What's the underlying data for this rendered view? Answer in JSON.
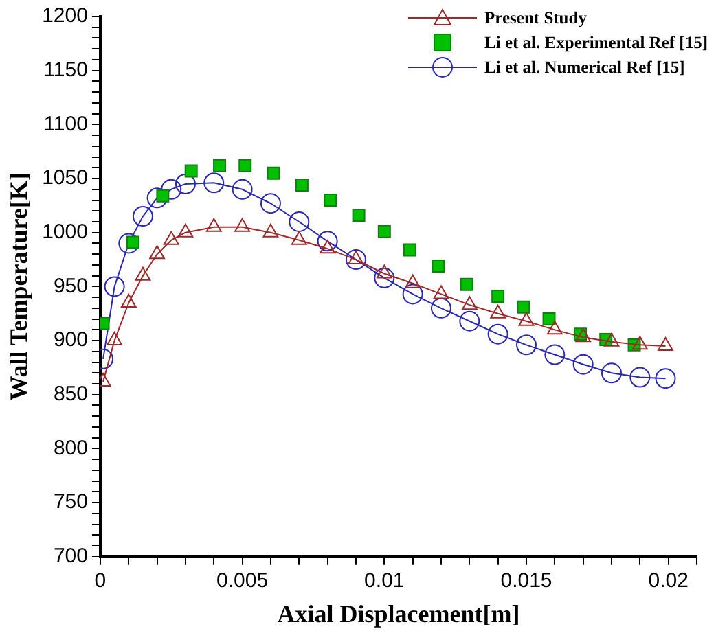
{
  "chart_data": {
    "type": "line",
    "xlabel": "Axial Displacement[m]",
    "ylabel": "Wall Temperature[K]",
    "xlim": [
      0,
      0.021
    ],
    "ylim": [
      700,
      1200
    ],
    "xticks": [
      0,
      {
        "value": 0.001,
        "label": null
      },
      {
        "value": 0.002,
        "label": null
      },
      {
        "value": 0.003,
        "label": null
      },
      {
        "value": 0.004,
        "label": null
      },
      0.005,
      {
        "value": 0.006,
        "label": null
      },
      {
        "value": 0.007,
        "label": null
      },
      {
        "value": 0.008,
        "label": null
      },
      {
        "value": 0.009,
        "label": null
      },
      0.01,
      {
        "value": 0.011,
        "label": null
      },
      {
        "value": 0.012,
        "label": null
      },
      {
        "value": 0.013,
        "label": null
      },
      {
        "value": 0.014,
        "label": null
      },
      0.015,
      {
        "value": 0.016,
        "label": null
      },
      {
        "value": 0.017,
        "label": null
      },
      {
        "value": 0.018,
        "label": null
      },
      {
        "value": 0.019,
        "label": null
      },
      0.02,
      {
        "value": 0.021,
        "label": null
      }
    ],
    "yticks": [
      700,
      {
        "value": 710,
        "label": null
      },
      {
        "value": 720,
        "label": null
      },
      {
        "value": 730,
        "label": null
      },
      {
        "value": 740,
        "label": null
      },
      750,
      {
        "value": 760,
        "label": null
      },
      {
        "value": 770,
        "label": null
      },
      {
        "value": 780,
        "label": null
      },
      {
        "value": 790,
        "label": null
      },
      800,
      {
        "value": 810,
        "label": null
      },
      {
        "value": 820,
        "label": null
      },
      {
        "value": 830,
        "label": null
      },
      {
        "value": 840,
        "label": null
      },
      850,
      {
        "value": 860,
        "label": null
      },
      {
        "value": 870,
        "label": null
      },
      {
        "value": 880,
        "label": null
      },
      {
        "value": 890,
        "label": null
      },
      900,
      {
        "value": 910,
        "label": null
      },
      {
        "value": 920,
        "label": null
      },
      {
        "value": 930,
        "label": null
      },
      {
        "value": 940,
        "label": null
      },
      950,
      {
        "value": 960,
        "label": null
      },
      {
        "value": 970,
        "label": null
      },
      {
        "value": 980,
        "label": null
      },
      {
        "value": 990,
        "label": null
      },
      1000,
      {
        "value": 1010,
        "label": null
      },
      {
        "value": 1020,
        "label": null
      },
      {
        "value": 1030,
        "label": null
      },
      {
        "value": 1040,
        "label": null
      },
      1050,
      {
        "value": 1060,
        "label": null
      },
      {
        "value": 1070,
        "label": null
      },
      {
        "value": 1080,
        "label": null
      },
      {
        "value": 1090,
        "label": null
      },
      1100,
      {
        "value": 1110,
        "label": null
      },
      {
        "value": 1120,
        "label": null
      },
      {
        "value": 1130,
        "label": null
      },
      {
        "value": 1140,
        "label": null
      },
      1150,
      {
        "value": 1160,
        "label": null
      },
      {
        "value": 1170,
        "label": null
      },
      {
        "value": 1180,
        "label": null
      },
      {
        "value": 1190,
        "label": null
      },
      1200
    ],
    "grid": false,
    "legend": "top right",
    "series": [
      {
        "name": "Present Study",
        "type": "line",
        "marker": "triangle",
        "line_style": "solid",
        "color": "#a02828",
        "x": [
          0.0001,
          0.0005,
          0.001,
          0.0015,
          0.002,
          0.0025,
          0.003,
          0.004,
          0.005,
          0.006,
          0.007,
          0.008,
          0.009,
          0.01,
          0.011,
          0.012,
          0.013,
          0.014,
          0.015,
          0.016,
          0.017,
          0.018,
          0.019,
          0.0199
        ],
        "values": [
          862,
          900,
          935,
          960,
          980,
          993,
          1000,
          1005,
          1005,
          1000,
          993,
          985,
          975,
          962,
          953,
          943,
          933,
          925,
          918,
          910,
          903,
          899,
          896,
          895
        ]
      },
      {
        "name": "Li et al. Experimental Ref [15]",
        "type": "scatter",
        "marker": "square",
        "color": "#00c000",
        "x": [
          0.0001,
          0.00115,
          0.0022,
          0.0032,
          0.0042,
          0.0051,
          0.0061,
          0.0071,
          0.0081,
          0.0091,
          0.01,
          0.0109,
          0.0119,
          0.0129,
          0.014,
          0.0149,
          0.0158,
          0.0169,
          0.0178,
          0.0188
        ],
        "values": [
          916,
          991,
          1034,
          1057,
          1062,
          1062,
          1055,
          1044,
          1030,
          1016,
          1001,
          984,
          969,
          952,
          941,
          931,
          920,
          906,
          901,
          896
        ]
      },
      {
        "name": "Li et al. Numerical Ref [15]",
        "type": "line",
        "marker": "circle",
        "line_style": "solid",
        "color": "#2828b4",
        "x": [
          0.0001,
          0.0005,
          0.001,
          0.0015,
          0.002,
          0.0025,
          0.003,
          0.004,
          0.005,
          0.006,
          0.007,
          0.008,
          0.009,
          0.01,
          0.011,
          0.012,
          0.013,
          0.014,
          0.015,
          0.016,
          0.017,
          0.018,
          0.019,
          0.0199
        ],
        "values": [
          883,
          950,
          990,
          1015,
          1032,
          1040,
          1045,
          1046,
          1040,
          1027,
          1010,
          992,
          975,
          958,
          943,
          930,
          918,
          906,
          896,
          887,
          878,
          870,
          866,
          865
        ]
      }
    ]
  }
}
